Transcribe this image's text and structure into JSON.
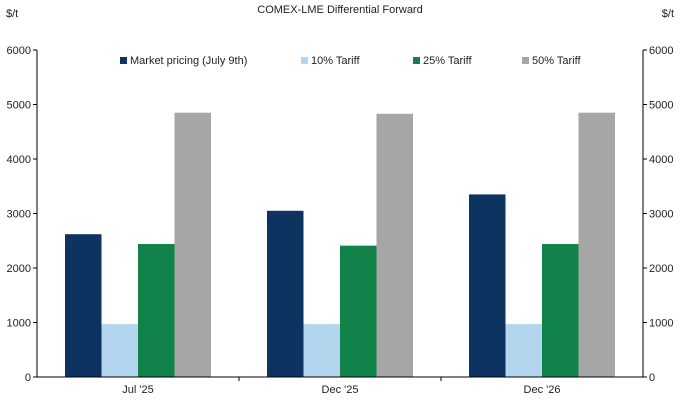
{
  "chart_data": {
    "type": "bar",
    "title": "COMEX-LME  Differential Forward",
    "y_unit_left": "$/t",
    "y_unit_right": "$/t",
    "categories": [
      "Jul '25",
      "Dec '25",
      "Dec '26"
    ],
    "series": [
      {
        "name": "Market pricing (July 9th)",
        "color": "#0d3461",
        "values": [
          2620,
          3050,
          3350
        ]
      },
      {
        "name": "10% Tariff",
        "color": "#b3d5ee",
        "values": [
          970,
          970,
          970
        ]
      },
      {
        "name": "25% Tariff",
        "color": "#11834a",
        "values": [
          2440,
          2410,
          2440
        ]
      },
      {
        "name": "50% Tariff",
        "color": "#a6a6a6",
        "values": [
          4850,
          4830,
          4850
        ]
      }
    ],
    "ylim": [
      0,
      6000
    ],
    "y_ticks": [
      "0",
      "1000",
      "2000",
      "3000",
      "4000",
      "5000",
      "6000"
    ],
    "grid": false,
    "legend_position": "top"
  }
}
